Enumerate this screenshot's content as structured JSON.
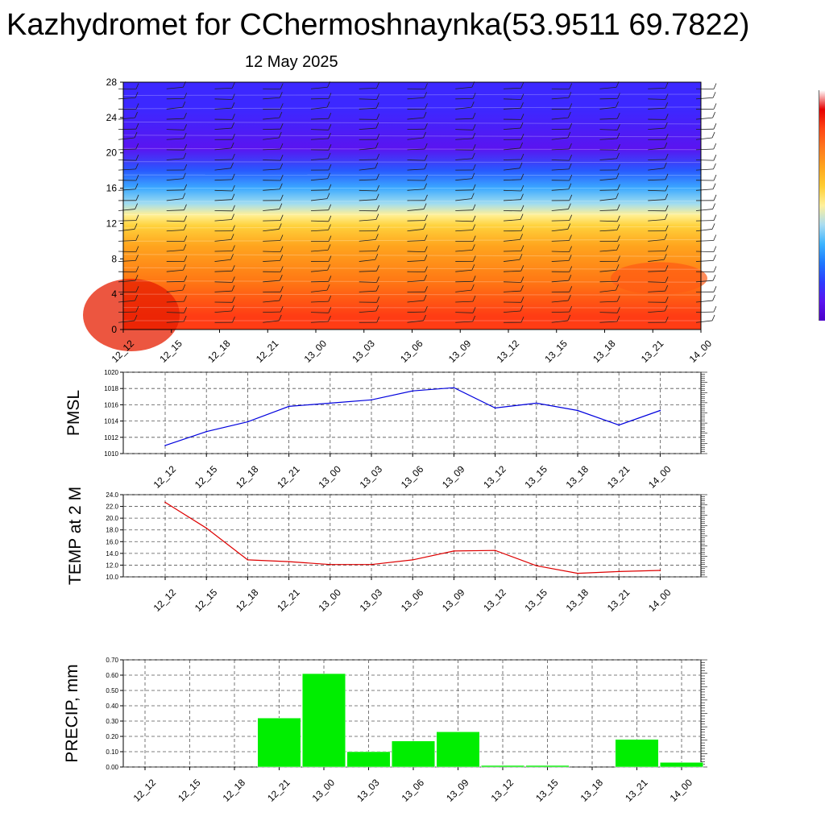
{
  "header": {
    "title": "Kazhydromet for CChermoshnaynka(53.9511 69.7822)",
    "date": "12 May 2025"
  },
  "colors": {
    "pmsl_line": "#0000dd",
    "temp_line": "#dd0000",
    "precip_bar": "#00ee00",
    "grid": "#555555",
    "barb": "#222222"
  },
  "colorbar": {
    "stops": [
      "#4b00c8",
      "#5a14f0",
      "#2d3cff",
      "#1e78ff",
      "#3cb4ff",
      "#aadcf0",
      "#fff09b",
      "#ffcd32",
      "#ffa51e",
      "#ff781e",
      "#ff4614",
      "#e60000",
      "#ffffff"
    ]
  },
  "chart_data": [
    {
      "type": "heatmap",
      "title": "",
      "x_tick_labels": [
        "12_12",
        "12_15",
        "12_18",
        "12_21",
        "13_00",
        "13_03",
        "13_06",
        "13_09",
        "13_12",
        "13_15",
        "13_18",
        "13_21",
        "14_00"
      ],
      "y_ticks": [
        0,
        4,
        8,
        12,
        16,
        20,
        24,
        28
      ],
      "ylim": [
        0,
        28
      ],
      "overlay": "wind barbs",
      "bands": [
        {
          "from": 0,
          "to": 3,
          "color": "#ff3c14"
        },
        {
          "from": 3,
          "to": 8,
          "color": "#ff7814"
        },
        {
          "from": 8,
          "to": 11,
          "color": "#ffa51e"
        },
        {
          "from": 11,
          "to": 12.5,
          "color": "#ffd23c"
        },
        {
          "from": 12.5,
          "to": 13.5,
          "color": "#fff096"
        },
        {
          "from": 13.5,
          "to": 15,
          "color": "#a0dcf0"
        },
        {
          "from": 15,
          "to": 17,
          "color": "#3caaff"
        },
        {
          "from": 17,
          "to": 19,
          "color": "#285aff"
        },
        {
          "from": 19,
          "to": 22,
          "color": "#5a14f0"
        },
        {
          "from": 22,
          "to": 28,
          "color": "#3c28ff"
        }
      ]
    },
    {
      "type": "line",
      "ylabel": "PMSL",
      "x": [
        "12_12",
        "12_15",
        "12_18",
        "12_21",
        "13_00",
        "13_03",
        "13_06",
        "13_09",
        "13_12",
        "13_15",
        "13_18",
        "13_21",
        "14_00"
      ],
      "values": [
        1011.0,
        1012.7,
        1013.9,
        1015.8,
        1016.2,
        1016.6,
        1017.7,
        1018.1,
        1015.6,
        1016.2,
        1015.3,
        1013.5,
        1015.3
      ],
      "y_ticks": [
        "1010",
        "1012",
        "1014",
        "1016",
        "1018",
        "1020"
      ],
      "ylim": [
        1010,
        1020
      ],
      "grid": true
    },
    {
      "type": "line",
      "ylabel": "TEMP at 2 M",
      "x": [
        "12_12",
        "12_15",
        "12_18",
        "12_21",
        "13_00",
        "13_03",
        "13_06",
        "13_09",
        "13_12",
        "13_15",
        "13_18",
        "13_21",
        "14_00"
      ],
      "values": [
        22.7,
        18.3,
        12.9,
        12.6,
        12.1,
        12.1,
        12.9,
        14.4,
        14.5,
        11.9,
        10.6,
        10.9,
        11.1
      ],
      "y_ticks": [
        "10.0",
        "12.0",
        "14.0",
        "16.0",
        "18.0",
        "20.0",
        "22.0",
        "24.0"
      ],
      "ylim": [
        10,
        24
      ],
      "grid": true
    },
    {
      "type": "bar",
      "ylabel": "PRECIP, mm",
      "categories": [
        "12_12",
        "12_15",
        "12_18",
        "12_21",
        "13_00",
        "13_03",
        "13_06",
        "13_09",
        "13_12",
        "13_15",
        "13_18",
        "13_21",
        "14_00"
      ],
      "values": [
        0,
        0,
        0,
        0.32,
        0.61,
        0.1,
        0.17,
        0.23,
        0.01,
        0.01,
        0,
        0.18,
        0.03
      ],
      "y_ticks": [
        "0.00",
        "0.10",
        "0.20",
        "0.30",
        "0.40",
        "0.50",
        "0.60",
        "0.70"
      ],
      "ylim": [
        0,
        0.7
      ],
      "grid": true
    }
  ]
}
